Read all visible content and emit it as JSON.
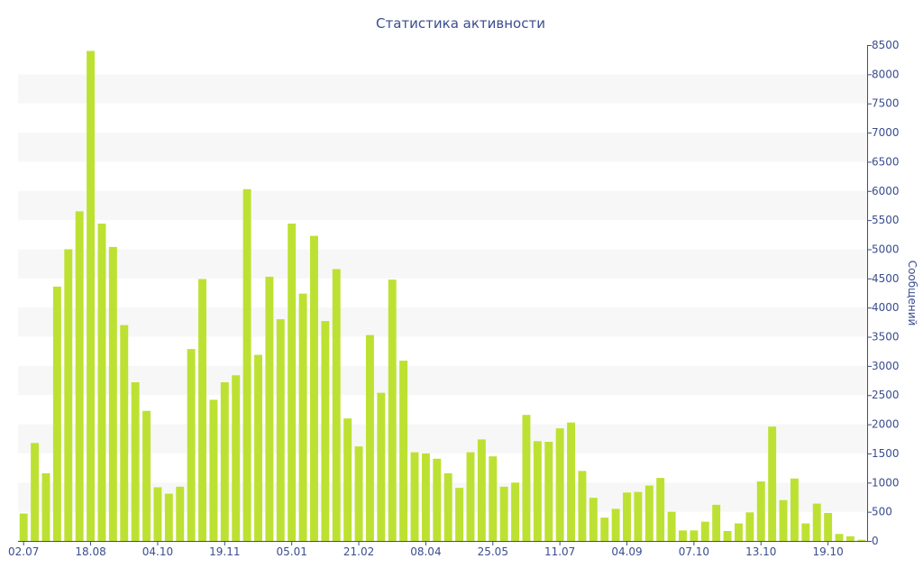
{
  "chart_data": {
    "type": "bar",
    "title": "Статистика активности",
    "ylabel": "Сообщений",
    "xlabel": "",
    "ylim": [
      0,
      8500
    ],
    "ytick_step": 500,
    "yaxis_position": "right",
    "grid": "alternating horizontal bands",
    "bar_color": "#bde132",
    "text_color": "#3a4d8f",
    "xtick_labels": [
      "02.07",
      "18.08",
      "04.10",
      "19.11",
      "05.01",
      "21.02",
      "08.04",
      "25.05",
      "11.07",
      "04.09",
      "07.10",
      "13.10",
      "19.10"
    ],
    "xtick_positions": [
      0,
      6,
      12,
      18,
      24,
      30,
      36,
      42,
      48,
      54,
      60,
      66,
      72
    ],
    "values": [
      470,
      1680,
      1160,
      4360,
      5000,
      5650,
      8400,
      5440,
      5040,
      3700,
      2720,
      2230,
      920,
      810,
      930,
      3290,
      4490,
      2420,
      2720,
      2840,
      6030,
      3190,
      4530,
      3800,
      5440,
      4240,
      5230,
      3770,
      4660,
      2100,
      1620,
      3530,
      2540,
      4480,
      3090,
      1520,
      1500,
      1410,
      1160,
      910,
      1520,
      1740,
      1450,
      930,
      1000,
      2160,
      1710,
      1700,
      1930,
      2030,
      1200,
      740,
      400,
      550,
      830,
      840,
      950,
      1080,
      500,
      180,
      180,
      330,
      620,
      170,
      300,
      490,
      1020,
      1960,
      700,
      1070,
      300,
      640,
      480,
      120,
      80,
      20
    ]
  }
}
